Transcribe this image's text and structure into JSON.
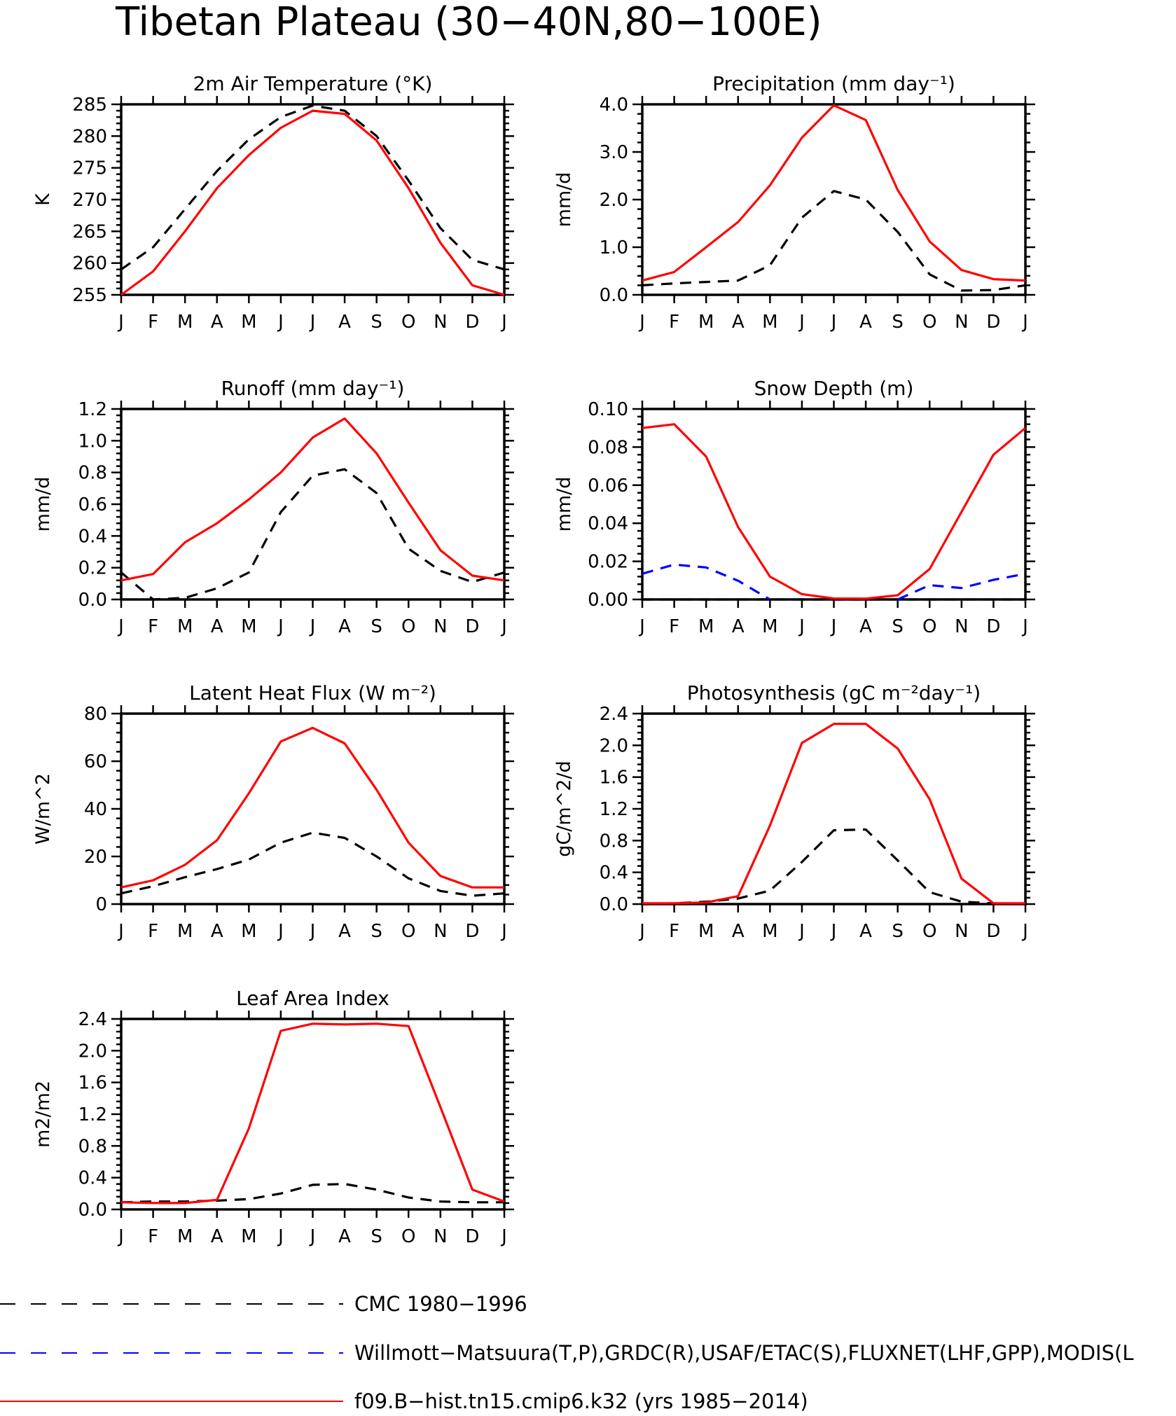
{
  "figure_title": "Tibetan Plateau (30−40N,80−100E)",
  "colors": {
    "cmc": "#000000",
    "obs": "#0000ff",
    "model": "#ff0000"
  },
  "legend": [
    {
      "key": "cmc",
      "label": "CMC 1980−1996",
      "dash": "dashed"
    },
    {
      "key": "obs",
      "label": "Willmott−Matsuura(T,P),GRDC(R),USAF/ETAC(S),FLUXNET(LHF,GPP),MODIS(L",
      "dash": "dashed"
    },
    {
      "key": "model",
      "label": "f09.B−hist.tn15.cmip6.k32 (yrs 1985−2014)",
      "dash": "solid"
    }
  ],
  "chart_data": [
    {
      "type": "line",
      "title": "2m Air Temperature (°K)",
      "ylabel": "K",
      "xlabel": "",
      "x": [
        "J",
        "F",
        "M",
        "A",
        "M",
        "J",
        "J",
        "A",
        "S",
        "O",
        "N",
        "D",
        "J"
      ],
      "ylim": [
        255,
        285
      ],
      "yticks": [
        255,
        260,
        265,
        270,
        275,
        280,
        285
      ],
      "ytick_labels": [
        "255",
        "260",
        "265",
        "270",
        "275",
        "280",
        "285"
      ],
      "series": [
        {
          "key": "cmc",
          "values": [
            259,
            262.5,
            268.5,
            274.5,
            279.5,
            283,
            284.8,
            284,
            280,
            273,
            265.5,
            260.5,
            259
          ]
        },
        {
          "key": "model",
          "values": [
            255,
            258.7,
            265,
            271.8,
            277,
            281.3,
            284,
            283.5,
            279.3,
            271.8,
            263.2,
            256.5,
            255
          ]
        }
      ]
    },
    {
      "type": "line",
      "title": "Precipitation (mm day⁻¹)",
      "ylabel": "mm/d",
      "xlabel": "",
      "x": [
        "J",
        "F",
        "M",
        "A",
        "M",
        "J",
        "J",
        "A",
        "S",
        "O",
        "N",
        "D",
        "J"
      ],
      "ylim": [
        0,
        4
      ],
      "yticks": [
        0,
        1,
        2,
        3,
        4
      ],
      "ytick_labels": [
        "0.0",
        "1.0",
        "2.0",
        "3.0",
        "4.0"
      ],
      "series": [
        {
          "key": "cmc",
          "values": [
            0.2,
            0.24,
            0.27,
            0.3,
            0.62,
            1.62,
            2.18,
            2.0,
            1.32,
            0.43,
            0.09,
            0.1,
            0.2
          ]
        },
        {
          "key": "model",
          "values": [
            0.3,
            0.48,
            1.0,
            1.53,
            2.3,
            3.3,
            3.98,
            3.67,
            2.2,
            1.12,
            0.52,
            0.33,
            0.3
          ]
        }
      ]
    },
    {
      "type": "line",
      "title": "Runoff (mm day⁻¹)",
      "ylabel": "mm/d",
      "xlabel": "",
      "x": [
        "J",
        "F",
        "M",
        "A",
        "M",
        "J",
        "J",
        "A",
        "S",
        "O",
        "N",
        "D",
        "J"
      ],
      "ylim": [
        0,
        1.2
      ],
      "yticks": [
        0,
        0.2,
        0.4,
        0.6,
        0.8,
        1.0,
        1.2
      ],
      "ytick_labels": [
        "0.0",
        "0.2",
        "0.4",
        "0.6",
        "0.8",
        "1.0",
        "1.2"
      ],
      "series": [
        {
          "key": "cmc",
          "values": [
            0.17,
            0.0,
            0.01,
            0.07,
            0.17,
            0.55,
            0.78,
            0.82,
            0.67,
            0.32,
            0.18,
            0.11,
            0.17
          ]
        },
        {
          "key": "model",
          "values": [
            0.12,
            0.16,
            0.36,
            0.48,
            0.63,
            0.8,
            1.02,
            1.14,
            0.92,
            0.61,
            0.31,
            0.15,
            0.12
          ]
        }
      ]
    },
    {
      "type": "line",
      "title": "Snow Depth (m)",
      "ylabel": "mm/d",
      "xlabel": "",
      "x": [
        "J",
        "F",
        "M",
        "A",
        "M",
        "J",
        "J",
        "A",
        "S",
        "O",
        "N",
        "D",
        "J"
      ],
      "ylim": [
        0,
        0.1
      ],
      "yticks": [
        0,
        0.02,
        0.04,
        0.06,
        0.08,
        0.1
      ],
      "ytick_labels": [
        "0.00",
        "0.02",
        "0.04",
        "0.06",
        "0.08",
        "0.10"
      ],
      "series": [
        {
          "key": "cmc",
          "values": [
            0,
            0,
            0,
            0,
            0,
            0,
            0,
            0,
            0,
            0,
            0,
            0,
            0
          ]
        },
        {
          "key": "obs",
          "values": [
            0.0135,
            0.0183,
            0.0168,
            0.0098,
            0.0,
            null,
            null,
            null,
            0.0,
            0.0075,
            0.006,
            0.0103,
            0.0135
          ]
        },
        {
          "key": "model",
          "values": [
            0.09,
            0.092,
            0.075,
            0.038,
            0.012,
            0.0028,
            0.0005,
            0.0004,
            0.0022,
            0.016,
            0.046,
            0.076,
            0.09
          ]
        }
      ]
    },
    {
      "type": "line",
      "title": "Latent Heat Flux (W m⁻²)",
      "ylabel": "W/m^2",
      "xlabel": "",
      "x": [
        "J",
        "F",
        "M",
        "A",
        "M",
        "J",
        "J",
        "A",
        "S",
        "O",
        "N",
        "D",
        "J"
      ],
      "ylim": [
        0,
        80
      ],
      "yticks": [
        0,
        20,
        40,
        60,
        80
      ],
      "ytick_labels": [
        "0",
        "20",
        "40",
        "60",
        "80"
      ],
      "series": [
        {
          "key": "cmc",
          "values": [
            4.5,
            7.5,
            11.3,
            14.7,
            18.7,
            25.8,
            30,
            27.8,
            20,
            10.8,
            5.5,
            3.5,
            4.5
          ]
        },
        {
          "key": "model",
          "values": [
            7,
            10,
            16.5,
            26.8,
            46.5,
            68.3,
            74,
            67.5,
            48,
            25.8,
            11.8,
            7,
            7
          ]
        }
      ]
    },
    {
      "type": "line",
      "title": "Photosynthesis (gC m⁻²day⁻¹)",
      "ylabel": "gC/m^2/d",
      "xlabel": "",
      "x": [
        "J",
        "F",
        "M",
        "A",
        "M",
        "J",
        "J",
        "A",
        "S",
        "O",
        "N",
        "D",
        "J"
      ],
      "ylim": [
        0,
        2.4
      ],
      "yticks": [
        0,
        0.4,
        0.8,
        1.2,
        1.6,
        2.0,
        2.4
      ],
      "ytick_labels": [
        "0.0",
        "0.4",
        "0.8",
        "1.2",
        "1.6",
        "2.0",
        "2.4"
      ],
      "series": [
        {
          "key": "cmc",
          "values": [
            0.0,
            0.01,
            0.03,
            0.07,
            0.17,
            0.53,
            0.93,
            0.94,
            0.55,
            0.15,
            0.03,
            0.01,
            0.0
          ]
        },
        {
          "key": "model",
          "values": [
            0.01,
            0.01,
            0.02,
            0.1,
            0.99,
            2.03,
            2.27,
            2.27,
            1.96,
            1.32,
            0.32,
            0.01,
            0.01
          ]
        }
      ]
    },
    {
      "type": "line",
      "title": "Leaf Area Index",
      "ylabel": "m2/m2",
      "xlabel": "",
      "x": [
        "J",
        "F",
        "M",
        "A",
        "M",
        "J",
        "J",
        "A",
        "S",
        "O",
        "N",
        "D",
        "J"
      ],
      "ylim": [
        0,
        2.4
      ],
      "yticks": [
        0,
        0.4,
        0.8,
        1.2,
        1.6,
        2.0,
        2.4
      ],
      "ytick_labels": [
        "0.0",
        "0.4",
        "0.8",
        "1.2",
        "1.6",
        "2.0",
        "2.4"
      ],
      "series": [
        {
          "key": "cmc",
          "values": [
            0.09,
            0.1,
            0.1,
            0.11,
            0.13,
            0.2,
            0.31,
            0.32,
            0.25,
            0.15,
            0.1,
            0.09,
            0.09
          ]
        },
        {
          "key": "model",
          "values": [
            0.09,
            0.08,
            0.08,
            0.12,
            1.02,
            2.25,
            2.34,
            2.33,
            2.34,
            2.31,
            1.29,
            0.25,
            0.1
          ]
        }
      ]
    }
  ]
}
